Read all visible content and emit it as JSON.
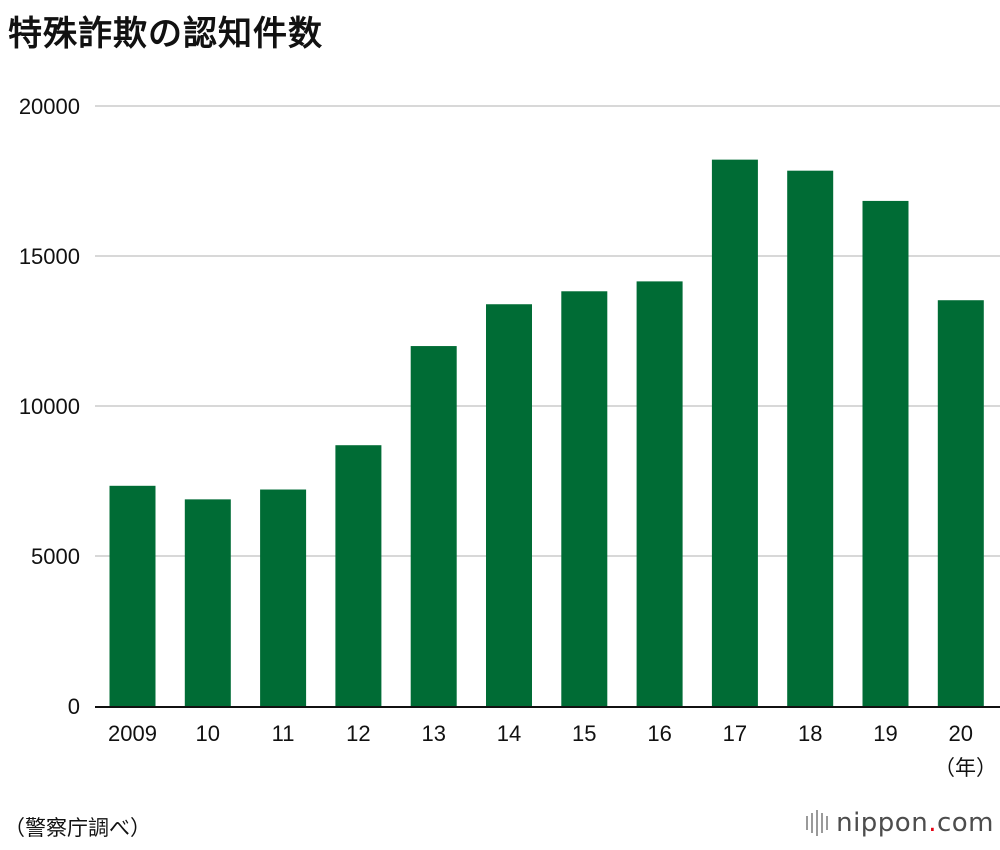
{
  "title": "特殊詐欺の認知件数",
  "source": "（警察庁調べ）",
  "brand": {
    "name": "nippon",
    "dot": ".",
    "tld": "com",
    "dot_color": "#e60012"
  },
  "colors": {
    "bar": "#006c35",
    "grid": "#cccccc",
    "axis": "#111111"
  },
  "chart_data": {
    "type": "bar",
    "title": "特殊詐欺の認知件数",
    "categories": [
      "2009",
      "10",
      "11",
      "12",
      "13",
      "14",
      "15",
      "16",
      "17",
      "18",
      "19",
      "20"
    ],
    "values": [
      7340,
      6888,
      7216,
      8693,
      11998,
      13392,
      13824,
      14154,
      18212,
      17844,
      16836,
      13526
    ],
    "x_unit": "（年）",
    "ylim": [
      0,
      20000
    ],
    "yticks": [
      0,
      5000,
      10000,
      15000,
      20000
    ],
    "grid": true,
    "legend": "none"
  }
}
